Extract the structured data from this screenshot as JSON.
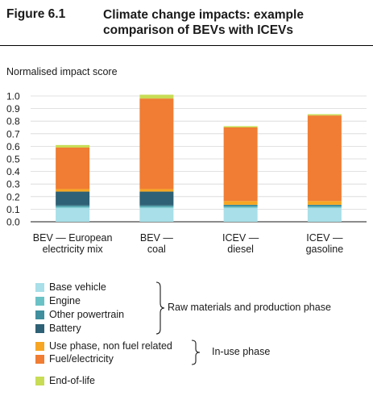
{
  "header": {
    "figure_number": "Figure 6.1",
    "title": "Climate change impacts: example comparison of BEVs with ICEVs"
  },
  "colors": {
    "base_vehicle": "#a8dfe8",
    "engine": "#6bc2c6",
    "other_powertrain": "#3f8f9e",
    "battery": "#2e6175",
    "use_phase": "#f6a623",
    "fuel_electricity": "#f07d33",
    "end_of_life": "#c8dc55"
  },
  "chart_data": {
    "type": "bar",
    "stacked": true,
    "ylabel": "Normalised impact score",
    "ylim": [
      0,
      1.0
    ],
    "yticks": [
      "0.0",
      "0.1",
      "0.2",
      "0.3",
      "0.4",
      "0.5",
      "0.6",
      "0.7",
      "0.8",
      "0.9",
      "1.0"
    ],
    "categories": [
      [
        "BEV — European",
        "electricity mix"
      ],
      [
        "BEV —",
        "coal"
      ],
      [
        "ICEV —",
        "diesel"
      ],
      [
        "ICEV —",
        "gasoline"
      ]
    ],
    "series": [
      {
        "name": "Base vehicle",
        "key": "base_vehicle",
        "values": [
          0.11,
          0.11,
          0.11,
          0.11
        ]
      },
      {
        "name": "Engine",
        "key": "engine",
        "values": [
          0.01,
          0.01,
          0.01,
          0.01
        ]
      },
      {
        "name": "Other powertrain",
        "key": "other_powertrain",
        "values": [
          0.01,
          0.01,
          0.015,
          0.015
        ]
      },
      {
        "name": "Battery",
        "key": "battery",
        "values": [
          0.11,
          0.11,
          0.0,
          0.0
        ]
      },
      {
        "name": "Use phase, non fuel related",
        "key": "use_phase",
        "values": [
          0.02,
          0.02,
          0.03,
          0.03
        ]
      },
      {
        "name": "Fuel/electricity",
        "key": "fuel_electricity",
        "values": [
          0.33,
          0.72,
          0.585,
          0.68
        ]
      },
      {
        "name": "End-of-life",
        "key": "end_of_life",
        "values": [
          0.02,
          0.03,
          0.01,
          0.01
        ]
      }
    ],
    "legend": {
      "group_1_label": "Raw materials and production phase",
      "group_2_label": "In-use phase"
    }
  }
}
